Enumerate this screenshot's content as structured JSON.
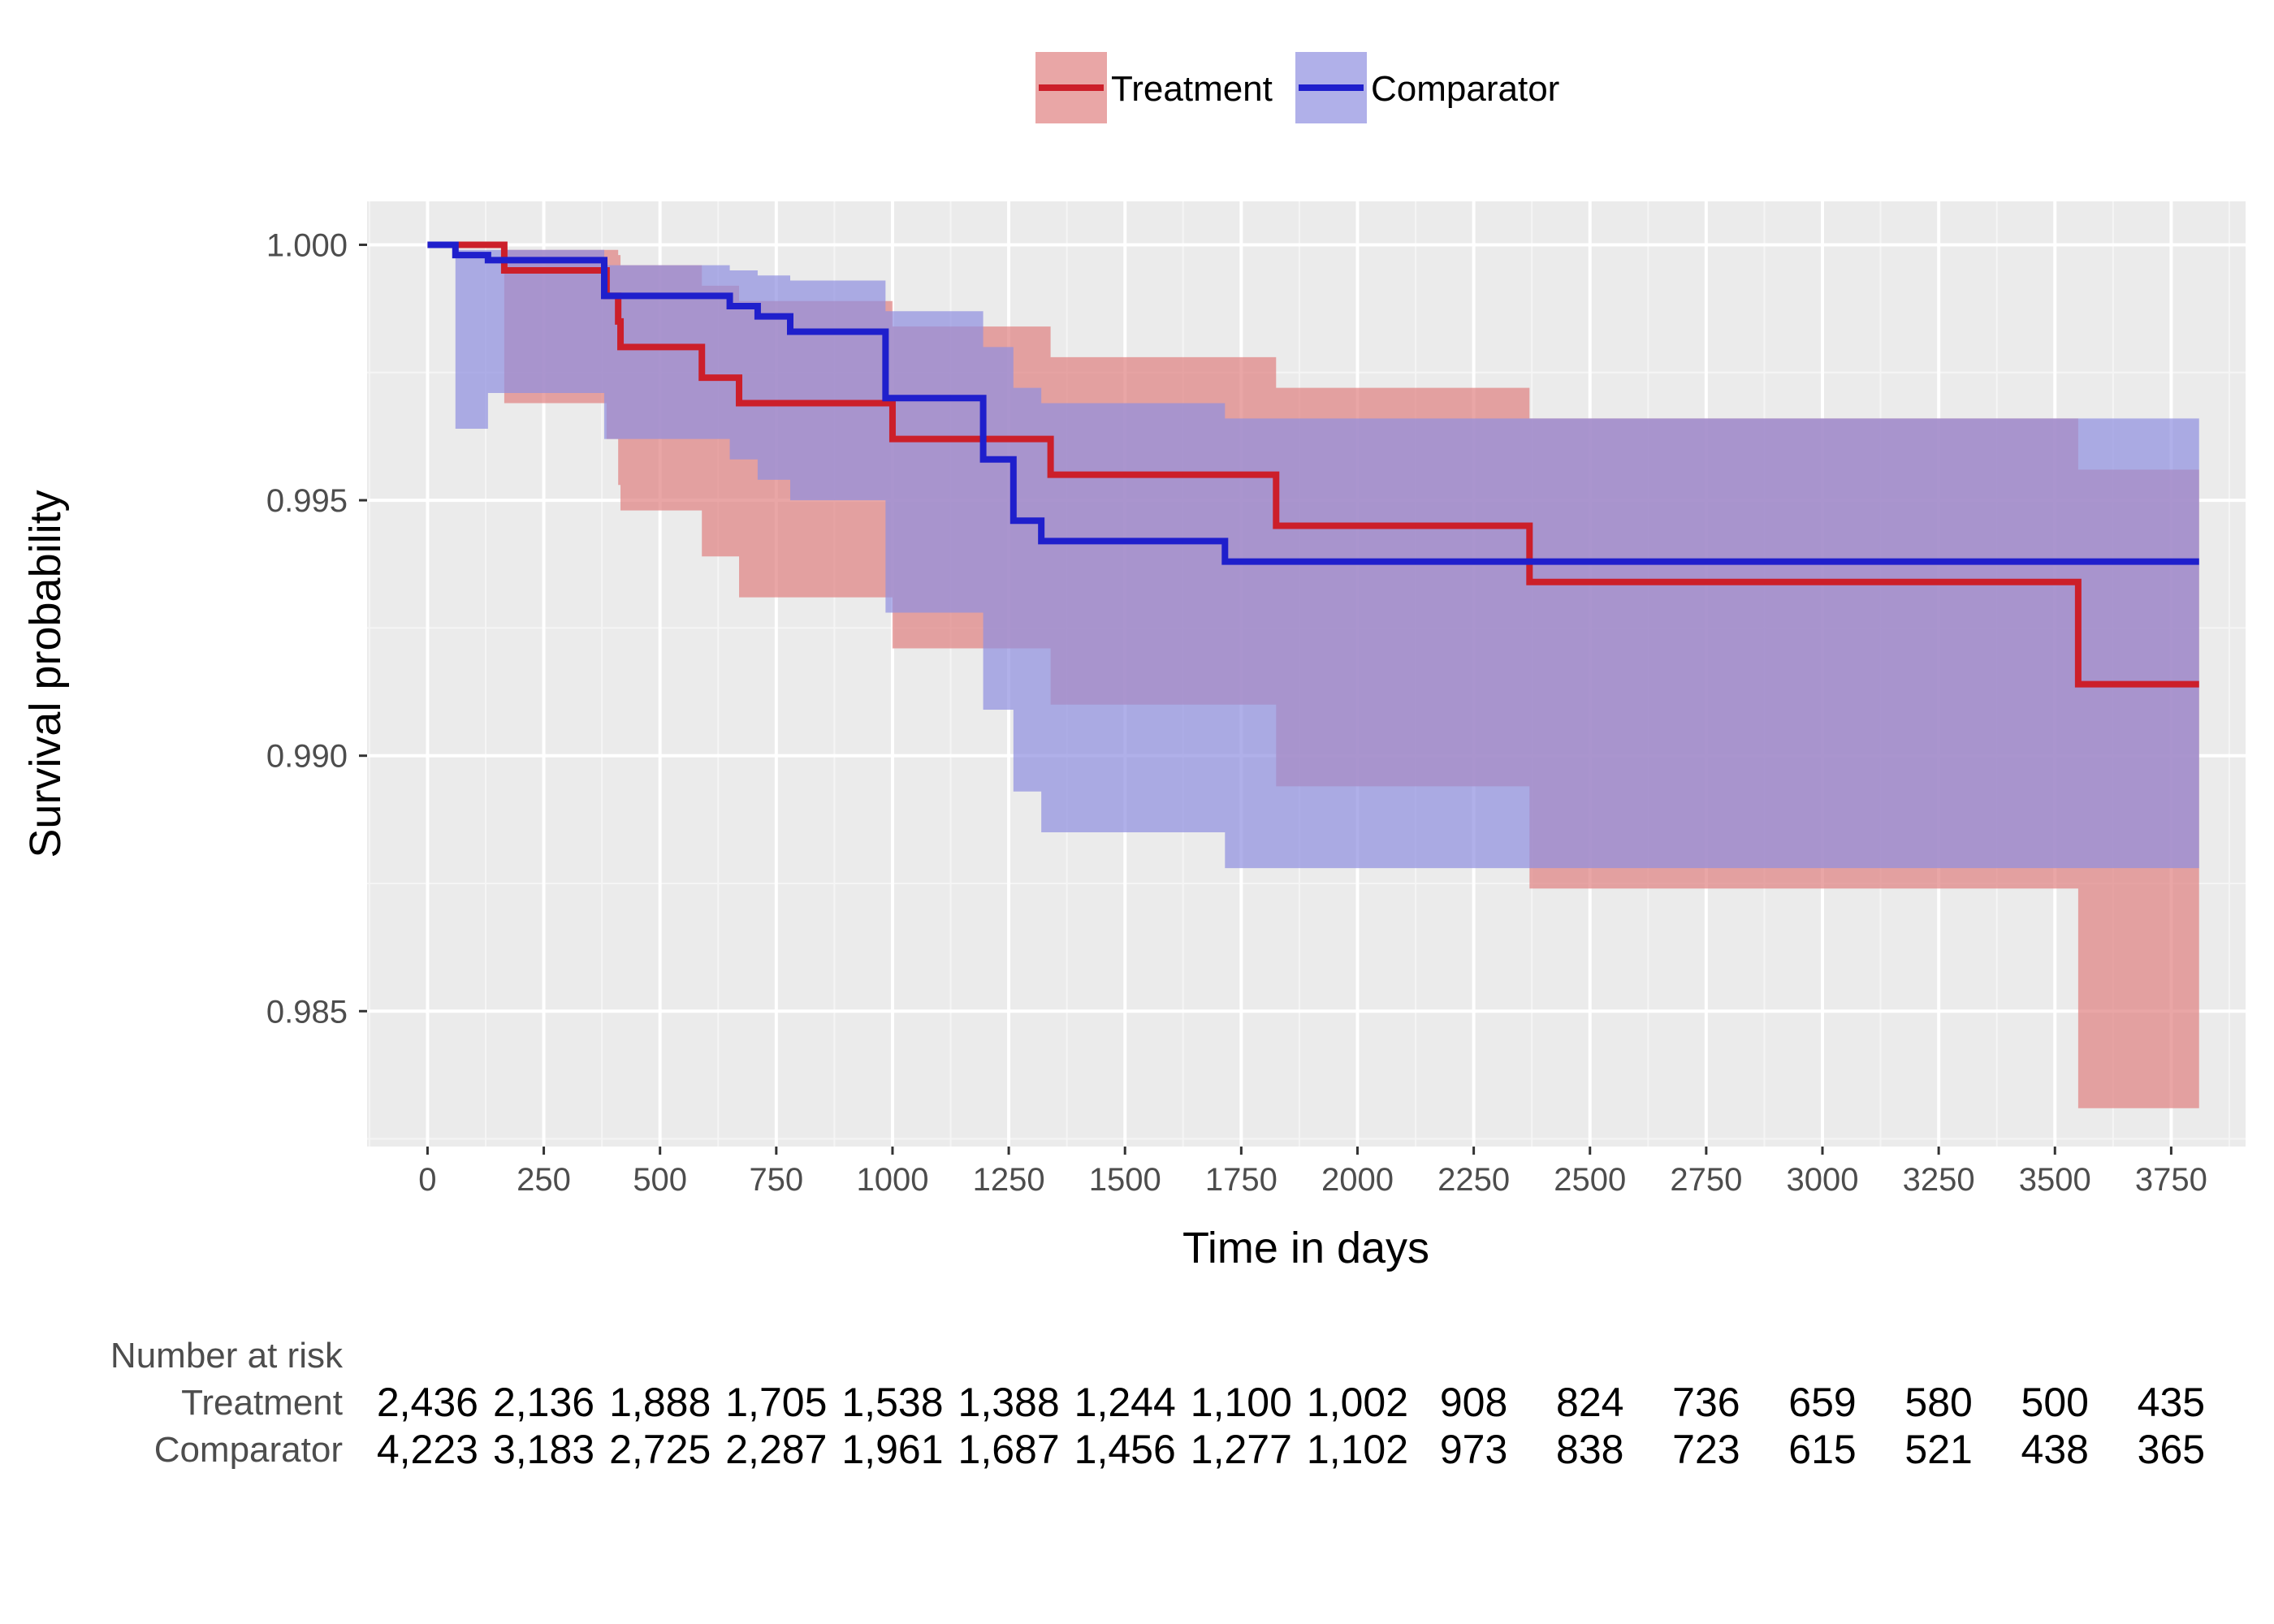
{
  "chart_data": {
    "type": "line",
    "step": true,
    "title": "",
    "xlabel": "Time in days",
    "ylabel": "Survival probability",
    "xlim": [
      -130,
      3910
    ],
    "ylim": [
      0.98235,
      1.00085
    ],
    "x_ticks": [
      0,
      250,
      500,
      750,
      1000,
      1250,
      1500,
      1750,
      2000,
      2250,
      2500,
      2750,
      3000,
      3250,
      3500,
      3750
    ],
    "x_tick_labels": [
      "0",
      "250",
      "500",
      "750",
      "1000",
      "1250",
      "1500",
      "1750",
      "2000",
      "2250",
      "2500",
      "2750",
      "3000",
      "3250",
      "3500",
      "3750"
    ],
    "y_ticks": [
      0.985,
      0.99,
      0.995,
      1.0
    ],
    "y_tick_labels": [
      "0.985",
      "0.990",
      "0.995",
      "1.000"
    ],
    "grid": true,
    "legend_position": "top",
    "series": [
      {
        "name": "Treatment",
        "color": "#cc1f2a",
        "ci_color": "#e08080",
        "x": [
          0,
          165,
          385,
          410,
          415,
          590,
          670,
          1000,
          1340,
          1825,
          2370,
          3550,
          3810
        ],
        "y": [
          1.0,
          0.9995,
          0.999,
          0.9985,
          0.998,
          0.9974,
          0.9969,
          0.9962,
          0.9955,
          0.9945,
          0.9934,
          0.9914,
          0.9914
        ],
        "lower": [
          1.0,
          0.9969,
          0.9962,
          0.9953,
          0.9948,
          0.9939,
          0.9931,
          0.9921,
          0.991,
          0.9894,
          0.9874,
          0.9831,
          0.9831
        ],
        "upper": [
          1.0,
          0.9999,
          0.9999,
          0.9998,
          0.9996,
          0.9992,
          0.9989,
          0.9984,
          0.9978,
          0.9972,
          0.9966,
          0.9956,
          0.9956
        ]
      },
      {
        "name": "Comparator",
        "color": "#1f1fcc",
        "ci_color": "#8f8fe0",
        "x": [
          0,
          60,
          130,
          380,
          650,
          710,
          780,
          985,
          1195,
          1260,
          1320,
          1715,
          3810
        ],
        "y": [
          1.0,
          0.9998,
          0.9997,
          0.999,
          0.9988,
          0.9986,
          0.9983,
          0.997,
          0.9958,
          0.9946,
          0.9942,
          0.9938,
          0.9938
        ],
        "lower": [
          1.0,
          0.9964,
          0.9971,
          0.9962,
          0.9958,
          0.9954,
          0.995,
          0.9928,
          0.9909,
          0.9893,
          0.9885,
          0.9878,
          0.9878
        ],
        "upper": [
          1.0,
          0.9999,
          0.9999,
          0.9996,
          0.9995,
          0.9994,
          0.9993,
          0.9987,
          0.998,
          0.9972,
          0.9969,
          0.9966,
          0.9969
        ]
      }
    ],
    "risk_table": {
      "title": "Number at risk",
      "times": [
        0,
        250,
        500,
        750,
        1000,
        1250,
        1500,
        1750,
        2000,
        2250,
        2500,
        2750,
        3000,
        3250,
        3500,
        3750
      ],
      "rows": [
        {
          "label": "Treatment",
          "values": [
            "2,436",
            "2,136",
            "1,888",
            "1,705",
            "1,538",
            "1,388",
            "1,244",
            "1,100",
            "1,002",
            "908",
            "824",
            "736",
            "659",
            "580",
            "500",
            "435"
          ]
        },
        {
          "label": "Comparator",
          "values": [
            "4,223",
            "3,183",
            "2,725",
            "2,287",
            "1,961",
            "1,687",
            "1,456",
            "1,277",
            "1,102",
            "973",
            "838",
            "723",
            "615",
            "521",
            "438",
            "365"
          ]
        }
      ]
    }
  }
}
